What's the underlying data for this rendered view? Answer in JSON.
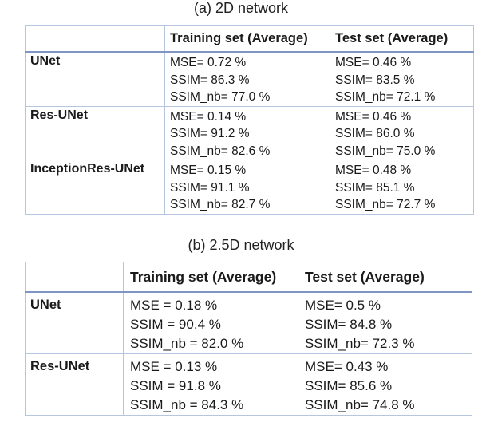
{
  "table_a": {
    "caption": "(a) 2D network",
    "headers": [
      "",
      "Training set (Average)",
      "Test set (Average)"
    ],
    "rows": [
      {
        "name": "UNet",
        "train": [
          "MSE= 0.72 %",
          "SSIM= 86.3 %",
          "SSIM_nb= 77.0 %"
        ],
        "test": [
          "MSE= 0.46 %",
          "SSIM= 83.5 %",
          "SSIM_nb= 72.1 %"
        ]
      },
      {
        "name": "Res-UNet",
        "train": [
          "MSE= 0.14 %",
          "SSIM= 91.2 %",
          "SSIM_nb= 82.6 %"
        ],
        "test": [
          "MSE= 0.46 %",
          "SSIM= 86.0 %",
          "SSIM_nb= 75.0 %"
        ]
      },
      {
        "name": "InceptionRes-UNet",
        "train": [
          "MSE= 0.15 %",
          "SSIM= 91.1 %",
          "SSIM_nb= 82.7 %"
        ],
        "test": [
          "MSE= 0.48 %",
          "SSIM= 85.1 %",
          "SSIM_nb= 72.7 %"
        ]
      }
    ]
  },
  "table_b": {
    "caption": "(b) 2.5D network",
    "headers": [
      "",
      "Training set (Average)",
      "Test set (Average)"
    ],
    "rows": [
      {
        "name": "UNet",
        "train": [
          "MSE = 0.18 %",
          "SSIM = 90.4 %",
          "SSIM_nb = 82.0 %"
        ],
        "test": [
          "MSE= 0.5 %",
          "SSIM= 84.8 %",
          "SSIM_nb= 72.3 %"
        ]
      },
      {
        "name": "Res-UNet",
        "train": [
          "MSE = 0.13 %",
          "SSIM = 91.8 %",
          "SSIM_nb = 84.3 %"
        ],
        "test": [
          "MSE= 0.43 %",
          "SSIM= 85.6 %",
          "SSIM_nb= 74.8 %"
        ]
      }
    ]
  }
}
